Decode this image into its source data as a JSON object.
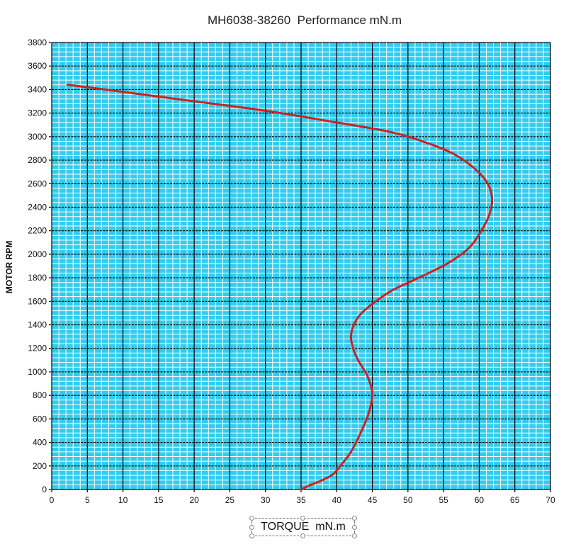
{
  "chart_data": {
    "type": "line",
    "title": "MH6038-38260  Performance mN.m",
    "xlabel": "TORQUE  mN.m",
    "ylabel": "MOTOR RPM",
    "xlim": [
      0,
      70
    ],
    "ylim": [
      0,
      3800
    ],
    "xticks": [
      0,
      5,
      10,
      15,
      20,
      25,
      30,
      35,
      40,
      45,
      50,
      55,
      60,
      65,
      70
    ],
    "yticks": [
      0,
      200,
      400,
      600,
      800,
      1000,
      1200,
      1400,
      1600,
      1800,
      2000,
      2200,
      2400,
      2600,
      2800,
      3000,
      3200,
      3400,
      3600,
      3800
    ],
    "grid": true,
    "minor_grid": true,
    "colors": {
      "background": "#33ccee",
      "minor_grid": "#ffffff",
      "major_grid": "#000000",
      "line": "#cc2222"
    },
    "series": [
      {
        "x": [
          35,
          36,
          38,
          39.5,
          40.5,
          42,
          43.5,
          44.5,
          45,
          44.8,
          44.2,
          43,
          42.3,
          42,
          42.4,
          43.5,
          45.5,
          48,
          51.5,
          55.5,
          58.5,
          60.3,
          61.5,
          61.8,
          61.2,
          59.5,
          56.5,
          52.5,
          47.5,
          40,
          30,
          20,
          10,
          5,
          2.2
        ],
        "y": [
          0,
          30,
          80,
          130,
          200,
          320,
          500,
          650,
          800,
          880,
          980,
          1100,
          1200,
          1300,
          1400,
          1500,
          1600,
          1700,
          1800,
          1920,
          2050,
          2200,
          2350,
          2480,
          2600,
          2720,
          2850,
          2950,
          3040,
          3120,
          3220,
          3300,
          3380,
          3420,
          3440
        ]
      }
    ]
  }
}
